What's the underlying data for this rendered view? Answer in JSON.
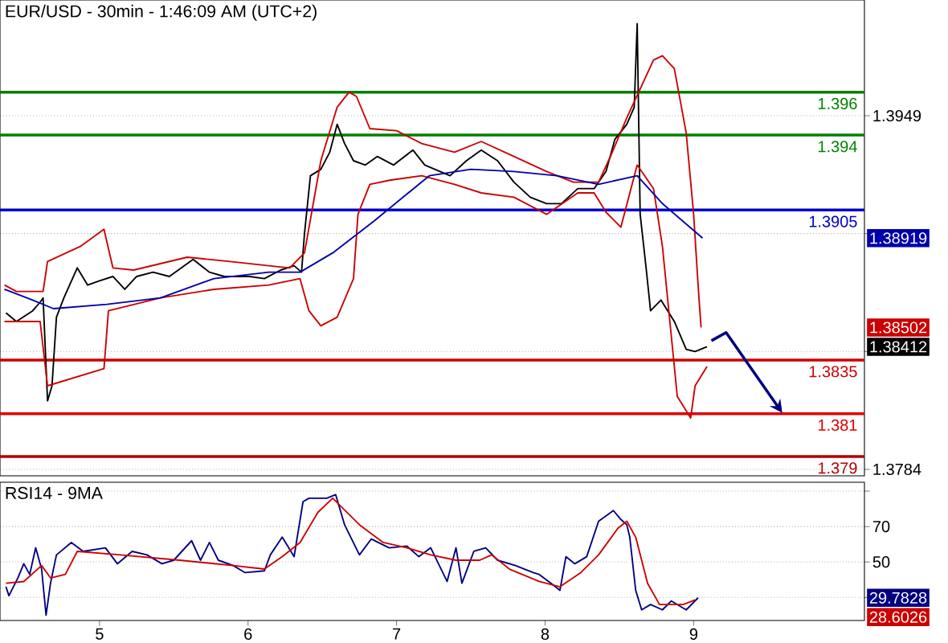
{
  "chart_data": [
    {
      "type": "line",
      "title": "EUR/USD - 30min - 1:46:09 AM (UTC+2)",
      "xlim": [
        4.33,
        10.15
      ],
      "ylim": [
        1.3781,
        1.4003
      ],
      "yticks": [
        1.3784,
        {
          "value": 1.3839,
          "label": null
        },
        {
          "value": 1.3894,
          "label": null
        },
        1.3949
      ],
      "grid": "y",
      "tick_labels": "y",
      "ref_lines": [
        {
          "axis": "y",
          "value": 1.396,
          "label": "1.396",
          "color": "#008000"
        },
        {
          "axis": "y",
          "value": 1.394,
          "label": "1.394",
          "color": "#008000"
        },
        {
          "axis": "y",
          "value": 1.3905,
          "label": "1.3905",
          "color": "#0000cc"
        },
        {
          "axis": "y",
          "value": 1.3835,
          "label": "1.3835",
          "color": "#cc0000"
        },
        {
          "axis": "y",
          "value": 1.381,
          "label": "1.381",
          "color": "#e00000"
        },
        {
          "axis": "y",
          "value": 1.379,
          "label": "1.379",
          "color": "#b00000"
        }
      ],
      "annotations": [
        "1.38919",
        "1.38502",
        "1.38412"
      ],
      "series": [
        {
          "color": "#000000",
          "x": [
            4.37,
            4.44,
            4.55,
            4.6,
            4.62,
            4.65,
            4.68,
            4.71,
            4.76,
            4.85,
            4.92,
            5.0,
            5.09,
            5.17,
            5.25,
            5.36,
            5.47,
            5.63,
            5.74,
            5.84,
            6.01,
            6.11,
            6.22,
            6.31,
            6.36,
            6.38,
            6.42,
            6.49,
            6.55,
            6.6,
            6.65,
            6.71,
            6.79,
            6.87,
            6.98,
            7.11,
            7.19,
            7.36,
            7.47,
            7.57,
            7.68,
            7.79,
            7.9,
            8.01,
            8.11,
            8.22,
            8.33,
            8.41,
            8.47,
            8.55,
            8.6,
            8.62,
            8.64,
            8.68,
            8.71,
            8.78,
            8.87,
            8.95,
            9.01,
            9.09
          ],
          "values": [
            1.3857,
            1.3853,
            1.3858,
            1.3862,
            1.3864,
            1.3816,
            1.3823,
            1.3855,
            1.3864,
            1.3878,
            1.387,
            1.3872,
            1.3874,
            1.3868,
            1.3874,
            1.3876,
            1.3874,
            1.3882,
            1.3876,
            1.3874,
            1.3874,
            1.3873,
            1.3877,
            1.3879,
            1.3876,
            1.3894,
            1.3921,
            1.3924,
            1.3932,
            1.3945,
            1.3936,
            1.3928,
            1.3926,
            1.393,
            1.3926,
            1.3933,
            1.3926,
            1.3921,
            1.3928,
            1.3933,
            1.3928,
            1.3918,
            1.3911,
            1.3908,
            1.3908,
            1.3915,
            1.3915,
            1.3923,
            1.3938,
            1.3945,
            1.3953,
            1.3992,
            1.3903,
            1.3878,
            1.3858,
            1.3863,
            1.3853,
            1.384,
            1.3839,
            1.38412
          ]
        },
        {
          "color": "#cc0000",
          "x": [
            4.36,
            4.44,
            4.62,
            4.65,
            4.87,
            5.03,
            5.09,
            5.23,
            5.59,
            5.88,
            6.14,
            6.28,
            6.38,
            6.49,
            6.6,
            6.68,
            6.73,
            6.82,
            7.0,
            7.17,
            7.39,
            7.57,
            7.79,
            8.01,
            8.19,
            8.36,
            8.44,
            8.55,
            8.63,
            8.73,
            8.79,
            8.87,
            8.95,
            9.0,
            9.03,
            9.05
          ],
          "values": [
            1.387,
            1.3867,
            1.3867,
            1.3881,
            1.3888,
            1.3896,
            1.3878,
            1.3877,
            1.3883,
            1.3881,
            1.3879,
            1.3878,
            1.3885,
            1.3928,
            1.3953,
            1.396,
            1.3958,
            1.3943,
            1.3942,
            1.3936,
            1.3932,
            1.3937,
            1.393,
            1.3923,
            1.3918,
            1.3918,
            1.393,
            1.3948,
            1.396,
            1.3975,
            1.3977,
            1.3971,
            1.3941,
            1.3903,
            1.387,
            1.38502
          ]
        },
        {
          "color": "#cc0000",
          "x": [
            4.36,
            4.6,
            4.65,
            5.03,
            5.06,
            5.41,
            5.77,
            6.14,
            6.35,
            6.41,
            6.49,
            6.6,
            6.71,
            6.74,
            6.82,
            6.96,
            7.17,
            7.39,
            7.57,
            7.79,
            8.01,
            8.22,
            8.33,
            8.41,
            8.51,
            8.62,
            8.73,
            8.79,
            8.84,
            8.89,
            8.98,
            9.01,
            9.09
          ],
          "values": [
            1.3853,
            1.3853,
            1.3823,
            1.3831,
            1.3858,
            1.3864,
            1.3868,
            1.387,
            1.3873,
            1.3858,
            1.3851,
            1.3855,
            1.3873,
            1.3903,
            1.3917,
            1.3919,
            1.3921,
            1.3917,
            1.3913,
            1.3911,
            1.3903,
            1.3913,
            1.3913,
            1.3904,
            1.3897,
            1.3926,
            1.3915,
            1.3888,
            1.3853,
            1.3818,
            1.3808,
            1.3823,
            1.3832
          ]
        },
        {
          "color": "#0000aa",
          "x": [
            4.36,
            4.55,
            4.69,
            5.05,
            5.41,
            5.77,
            6.14,
            6.35,
            6.57,
            6.85,
            7.22,
            7.5,
            7.79,
            8.08,
            8.36,
            8.62,
            8.79,
            9.06
          ],
          "values": [
            1.3868,
            1.3863,
            1.3859,
            1.3861,
            1.3864,
            1.3873,
            1.3876,
            1.3876,
            1.3885,
            1.39,
            1.3921,
            1.3924,
            1.3923,
            1.3921,
            1.3917,
            1.3921,
            1.3908,
            1.38919
          ]
        }
      ]
    },
    {
      "type": "line",
      "title": "RSI14 - 9MA",
      "xlim": [
        4.33,
        10.15
      ],
      "xticks": [
        5,
        6,
        7,
        8,
        9
      ],
      "ylim": [
        17,
        95
      ],
      "yticks": [
        {
          "value": 30,
          "label": null
        },
        50,
        70,
        {
          "value": 90,
          "label": null
        }
      ],
      "grid": "y",
      "annotations": [
        "29.7828",
        "28.6026"
      ],
      "series": [
        {
          "color": "#000080",
          "x": [
            4.37,
            4.39,
            4.45,
            4.49,
            4.53,
            4.57,
            4.61,
            4.64,
            4.67,
            4.71,
            4.81,
            4.89,
            5.04,
            5.12,
            5.22,
            5.32,
            5.42,
            5.5,
            5.62,
            5.68,
            5.74,
            5.8,
            5.9,
            5.98,
            6.11,
            6.15,
            6.23,
            6.31,
            6.37,
            6.41,
            6.53,
            6.59,
            6.65,
            6.75,
            6.83,
            6.95,
            7.07,
            7.15,
            7.23,
            7.34,
            7.4,
            7.44,
            7.52,
            7.6,
            7.68,
            7.8,
            7.92,
            7.96,
            8.04,
            8.1,
            8.14,
            8.2,
            8.28,
            8.36,
            8.46,
            8.51,
            8.55,
            8.57,
            8.61,
            8.65,
            8.71,
            8.79,
            8.85,
            8.95,
            9.03
          ],
          "values": [
            36,
            31,
            41,
            49,
            43,
            58,
            46,
            20,
            38,
            54,
            61,
            56,
            58,
            49,
            56,
            54,
            49,
            51,
            62,
            51,
            61,
            51,
            48,
            44,
            45,
            54,
            64,
            53,
            84,
            86,
            86,
            88,
            71,
            54,
            63,
            58,
            59,
            53,
            58,
            39,
            58,
            38,
            56,
            58,
            51,
            48,
            44,
            43,
            38,
            34,
            53,
            49,
            53,
            73,
            79,
            74,
            71,
            64,
            34,
            23,
            26,
            23,
            28,
            23,
            29.7828
          ]
        },
        {
          "color": "#cc0000",
          "x": [
            4.37,
            4.49,
            4.61,
            4.67,
            4.77,
            4.85,
            5.14,
            5.54,
            5.9,
            6.11,
            6.23,
            6.35,
            6.47,
            6.57,
            6.75,
            6.91,
            7.07,
            7.23,
            7.4,
            7.56,
            7.64,
            7.76,
            7.96,
            8.1,
            8.24,
            8.36,
            8.49,
            8.55,
            8.61,
            8.69,
            8.77,
            8.93,
            9.01
          ],
          "values": [
            38,
            39,
            48,
            41,
            43,
            56,
            54,
            51,
            48,
            46,
            53,
            61,
            78,
            86,
            71,
            61,
            58,
            54,
            51,
            51,
            54,
            46,
            39,
            36,
            44,
            54,
            69,
            73,
            64,
            38,
            26,
            26,
            28.6026
          ]
        }
      ]
    }
  ]
}
